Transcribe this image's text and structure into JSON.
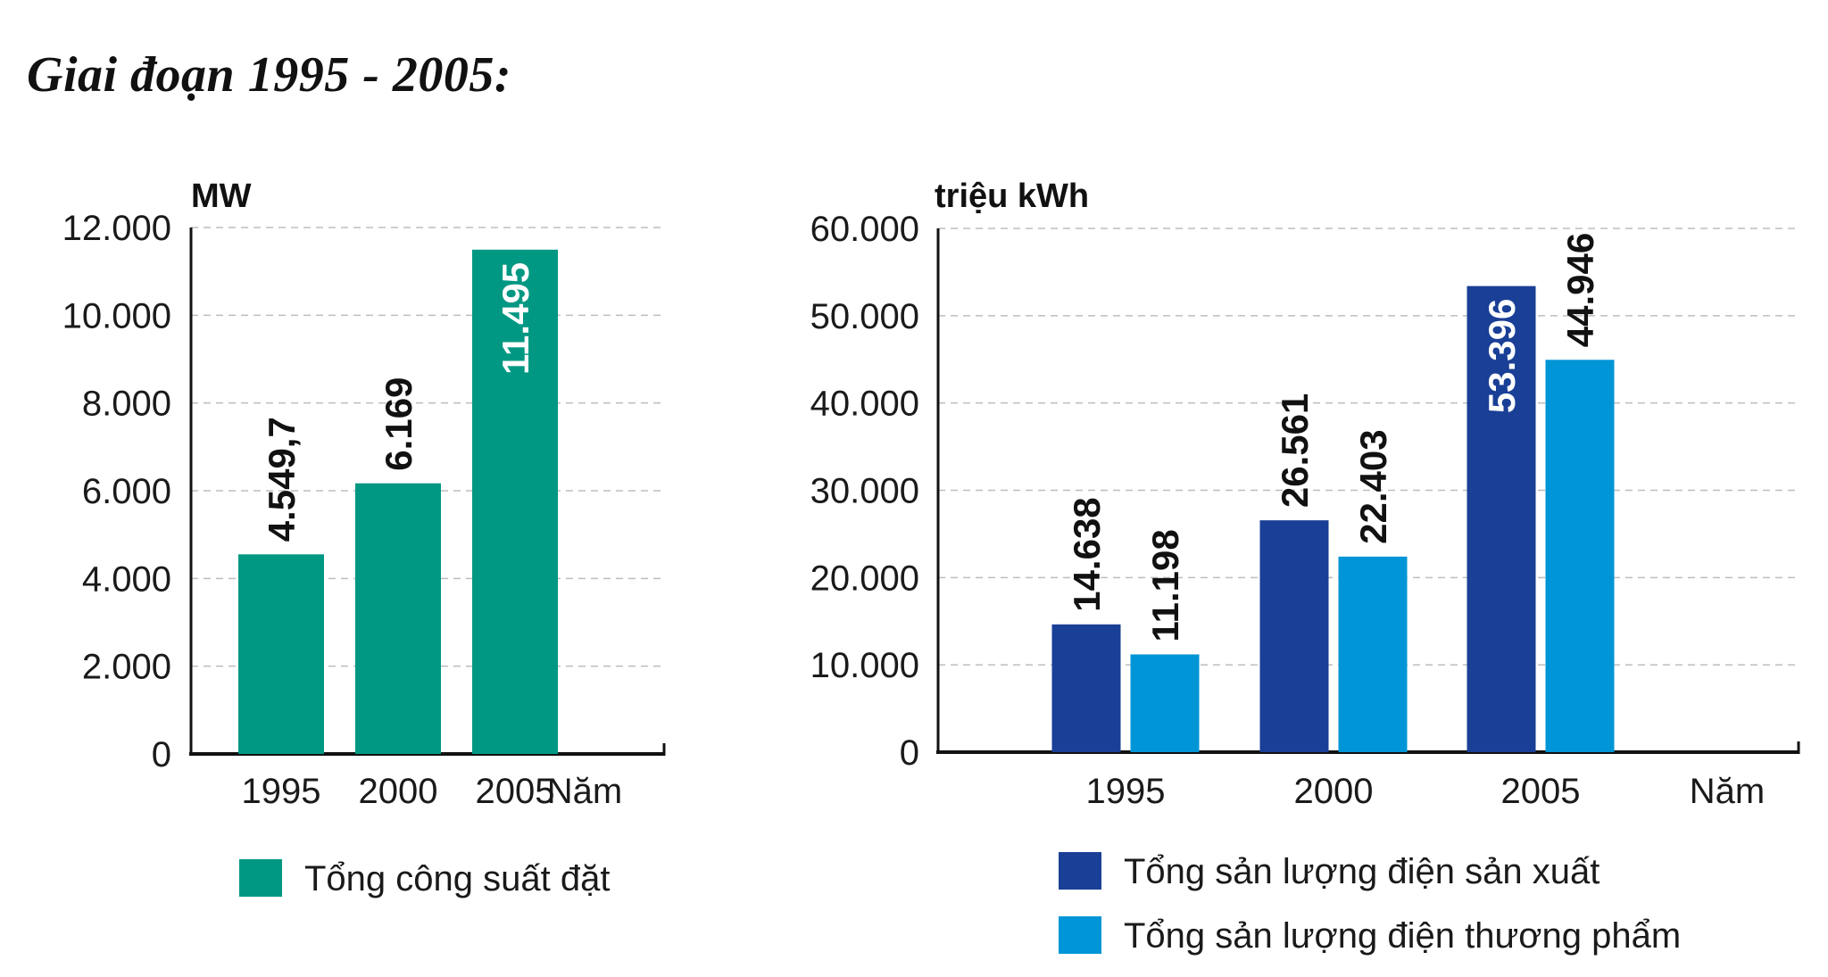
{
  "page": {
    "title": "Giai đoạn 1995 - 2005:"
  },
  "chart_data": [
    {
      "type": "bar",
      "unit_label": "MW",
      "xlabel": "Năm",
      "categories": [
        "1995",
        "2000",
        "2005"
      ],
      "ylim": [
        0,
        12000
      ],
      "y_ticks": [
        "0",
        "2.000",
        "4.000",
        "6.000",
        "8.000",
        "10.000",
        "12.000"
      ],
      "grid": "horizontal dashed",
      "series": [
        {
          "name": "Tổng công suất đặt",
          "color": "#009882",
          "values": [
            4549.7,
            6169,
            11495
          ],
          "data_labels": [
            "4.549,7",
            "6.169",
            "11.495"
          ]
        }
      ],
      "legend_position": "bottom"
    },
    {
      "type": "bar",
      "unit_label": "triệu kWh",
      "xlabel": "Năm",
      "categories": [
        "1995",
        "2000",
        "2005"
      ],
      "ylim": [
        0,
        60000
      ],
      "y_ticks": [
        "0",
        "10.000",
        "20.000",
        "30.000",
        "40.000",
        "50.000",
        "60.000"
      ],
      "grid": "horizontal dashed",
      "series": [
        {
          "name": "Tổng sản lượng điện sản xuất",
          "color": "#1a3f96",
          "values": [
            14638,
            26561,
            53396
          ],
          "data_labels": [
            "14.638",
            "26.561",
            "53.396"
          ]
        },
        {
          "name": "Tổng sản lượng điện thương phẩm",
          "color": "#0095d6",
          "values": [
            11198,
            22403,
            44946
          ],
          "data_labels": [
            "11.198",
            "22.403",
            "44.946"
          ]
        }
      ],
      "legend_position": "bottom"
    }
  ]
}
